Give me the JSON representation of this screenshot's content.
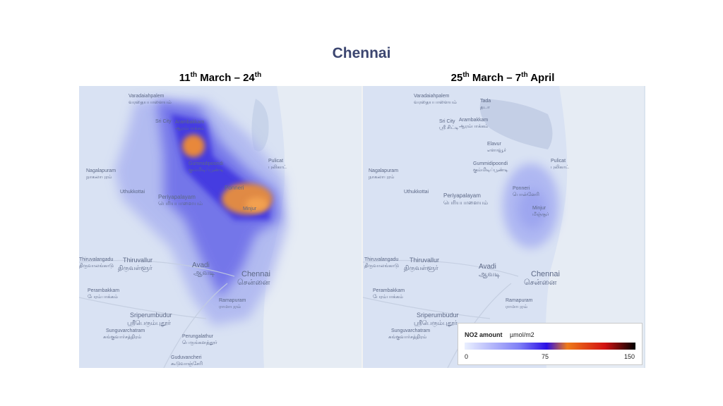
{
  "page_title": "Chennai",
  "panels": [
    {
      "prefix": "11",
      "prefix_sup": "th",
      "middle": " March – 24",
      "suffix_sup": "th",
      "tail": ""
    },
    {
      "prefix": "25",
      "prefix_sup": "th",
      "middle": " March – 7",
      "suffix_sup": "th",
      "tail": " April"
    }
  ],
  "place_labels": [
    {
      "en": "Varadaiahpalem",
      "ta": "வரதையபாளையம்"
    },
    {
      "en": "Tada",
      "ta": "தடா"
    },
    {
      "en": "Arambakkam",
      "ta": "ஆரம்பாக்கம்"
    },
    {
      "en": "Sri City",
      "ta": "ஸ்ரீ சிட்டி"
    },
    {
      "en": "Elavur",
      "ta": "எளாவூர்"
    },
    {
      "en": "Gummidipoondi",
      "ta": "கும்மிடிப்பூண்டி"
    },
    {
      "en": "Pulicat",
      "ta": "புலிகாட்"
    },
    {
      "en": "Nagalapuram",
      "ta": "நாகலாபுரம்"
    },
    {
      "en": "Uthukkottai",
      "ta": "ஊத்துக்கோட்டை"
    },
    {
      "en": "Periyapalayam",
      "ta": "பெரியபாளையம்"
    },
    {
      "en": "Ponneri",
      "ta": "பொன்னேரி"
    },
    {
      "en": "Minjur",
      "ta": "மீஞ்சூர்"
    },
    {
      "en": "Thiruvalangadu",
      "ta": "திருவாலங்காடு"
    },
    {
      "en": "Thiruvallur",
      "ta": "திருவள்ளூர்"
    },
    {
      "en": "Avadi",
      "ta": "ஆவடி"
    },
    {
      "en": "Chennai",
      "ta": "சென்னை"
    },
    {
      "en": "Perambakkam",
      "ta": "பேரம்பாக்கம்"
    },
    {
      "en": "Ramapuram",
      "ta": "ராமாபுரம்"
    },
    {
      "en": "Sriperumbudur",
      "ta": "ஸ்ரீபெரும்புதூர்"
    },
    {
      "en": "Sunguvarchatram",
      "ta": "சுங்குவார்சத்திரம்"
    },
    {
      "en": "Perungalathur",
      "ta": "பெருங்களத்தூர்"
    },
    {
      "en": "Guduvancheri",
      "ta": "கூடுவாஞ்சேரி"
    }
  ],
  "legend": {
    "title": "NO2 amount",
    "unit": "µmol/m2",
    "ticks": [
      "0",
      "75",
      "150"
    ],
    "colors": [
      "#eaf0ff",
      "#7f7ff6",
      "#2b10e6",
      "#ee7a19",
      "#d21212",
      "#000000"
    ]
  }
}
